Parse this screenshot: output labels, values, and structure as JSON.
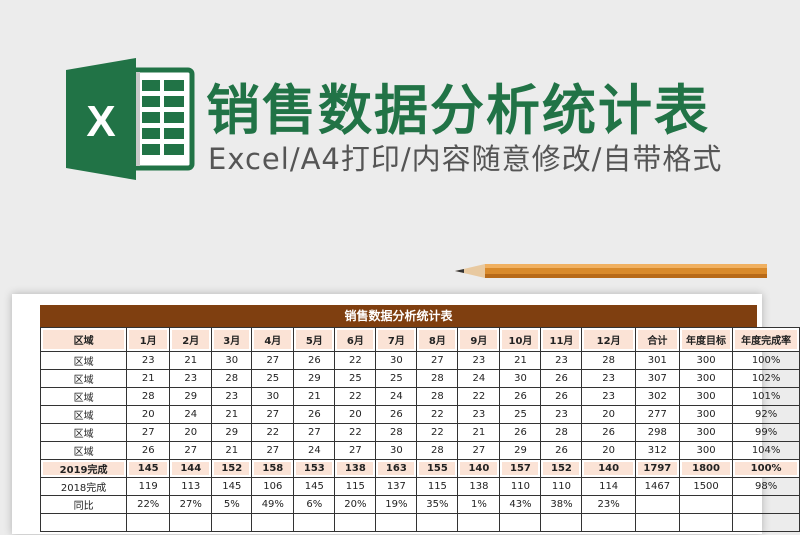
{
  "header": {
    "title": "销售数据分析统计表",
    "subtitle": "Excel/A4打印/内容随意修改/自带格式",
    "logo_icon": "excel-logo-icon",
    "logo_letter": "X",
    "brand_color": "#217346"
  },
  "sheet": {
    "title": "销售数据分析统计表",
    "title_bar_color": "#7f3f10",
    "header_fill": "#fbe3d6",
    "columns": [
      "区域",
      "1月",
      "2月",
      "3月",
      "4月",
      "5月",
      "6月",
      "7月",
      "8月",
      "9月",
      "10月",
      "11月",
      "12月",
      "合计",
      "年度目标",
      "年度完成率"
    ],
    "rows": [
      [
        "区域",
        "23",
        "21",
        "30",
        "27",
        "26",
        "22",
        "30",
        "27",
        "23",
        "21",
        "23",
        "28",
        "301",
        "300",
        "100%"
      ],
      [
        "区域",
        "21",
        "23",
        "28",
        "25",
        "29",
        "25",
        "25",
        "28",
        "24",
        "30",
        "26",
        "23",
        "307",
        "300",
        "102%"
      ],
      [
        "区域",
        "28",
        "29",
        "23",
        "30",
        "21",
        "22",
        "24",
        "28",
        "22",
        "26",
        "26",
        "23",
        "302",
        "300",
        "101%"
      ],
      [
        "区域",
        "20",
        "24",
        "21",
        "27",
        "26",
        "20",
        "26",
        "22",
        "23",
        "25",
        "23",
        "20",
        "277",
        "300",
        "92%"
      ],
      [
        "区域",
        "27",
        "20",
        "29",
        "22",
        "27",
        "22",
        "28",
        "22",
        "21",
        "26",
        "28",
        "26",
        "298",
        "300",
        "99%"
      ],
      [
        "区域",
        "26",
        "27",
        "21",
        "27",
        "24",
        "27",
        "30",
        "28",
        "27",
        "29",
        "26",
        "20",
        "312",
        "300",
        "104%"
      ]
    ],
    "summary_row": [
      "2019完成",
      "145",
      "144",
      "152",
      "158",
      "153",
      "138",
      "163",
      "155",
      "140",
      "157",
      "152",
      "140",
      "1797",
      "1800",
      "100%"
    ],
    "prev_row": [
      "2018完成",
      "119",
      "113",
      "145",
      "106",
      "145",
      "115",
      "137",
      "115",
      "138",
      "110",
      "110",
      "114",
      "1467",
      "1500",
      "98%"
    ],
    "yoy_row": [
      "同比",
      "22%",
      "27%",
      "5%",
      "49%",
      "6%",
      "20%",
      "19%",
      "35%",
      "1%",
      "43%",
      "38%",
      "23%",
      "",
      "",
      ""
    ]
  }
}
